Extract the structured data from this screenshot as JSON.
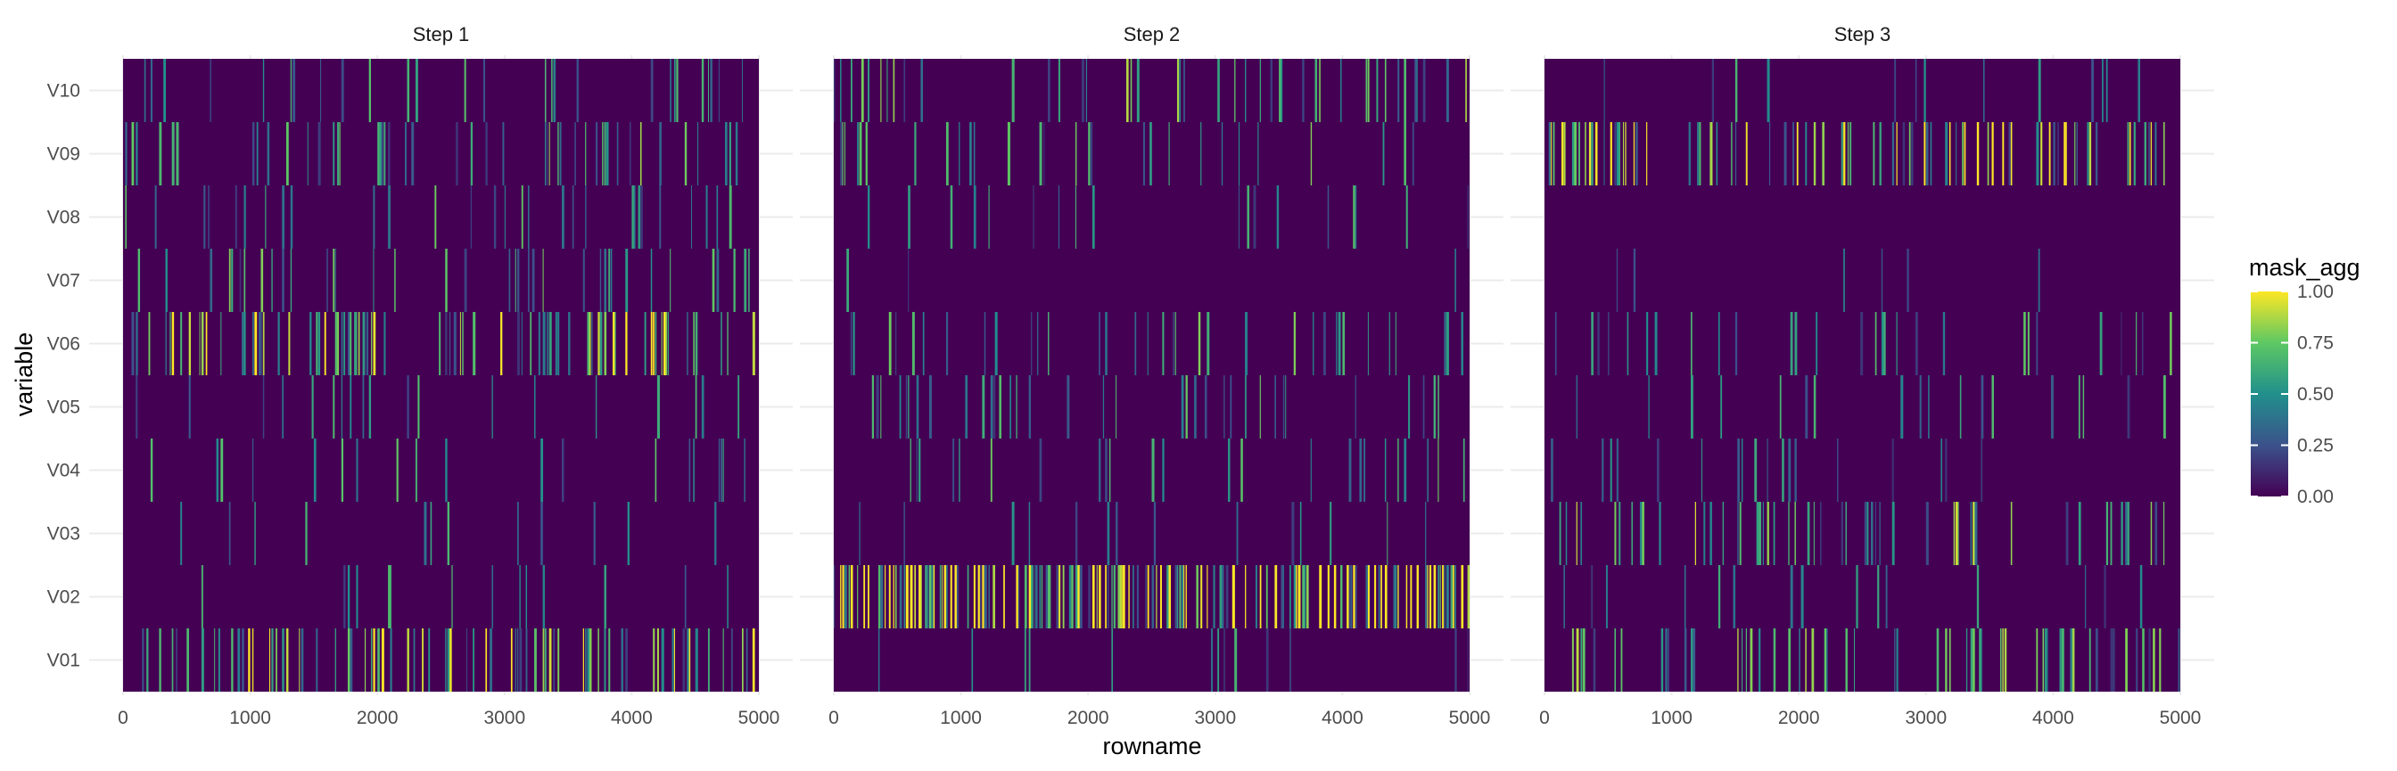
{
  "chart_data": {
    "type": "heatmap",
    "facet_titles": [
      "Step 1",
      "Step 2",
      "Step 3"
    ],
    "xlabel": "rowname",
    "ylabel": "variable",
    "xlim": [
      0,
      5000
    ],
    "x_ticks": [
      "0",
      "1000",
      "2000",
      "3000",
      "4000",
      "5000"
    ],
    "x_tick_values": [
      0,
      1000,
      2000,
      3000,
      4000,
      5000
    ],
    "variables": [
      "V01",
      "V02",
      "V03",
      "V04",
      "V05",
      "V06",
      "V07",
      "V08",
      "V09",
      "V10"
    ],
    "legend": {
      "title": "mask_agg",
      "placement": "right",
      "range": [
        0,
        1
      ],
      "ticks": [
        "0.00",
        "0.25",
        "0.50",
        "0.75",
        "1.00"
      ],
      "tick_values": [
        0,
        0.25,
        0.5,
        0.75,
        1.0
      ]
    },
    "palette": "viridis",
    "colors": [
      "#440154",
      "#3b528b",
      "#21908c",
      "#5dc863",
      "#fde725"
    ],
    "grid": true,
    "n_rows": 5000,
    "mean_mask_by_step_and_variable": {
      "Step 1": {
        "V01": 0.28,
        "V02": 0.06,
        "V03": 0.05,
        "V04": 0.1,
        "V05": 0.09,
        "V06": 0.32,
        "V07": 0.14,
        "V08": 0.11,
        "V09": 0.16,
        "V10": 0.1
      },
      "Step 2": {
        "V01": 0.04,
        "V02": 0.55,
        "V03": 0.08,
        "V04": 0.12,
        "V05": 0.13,
        "V06": 0.13,
        "V07": 0.02,
        "V08": 0.08,
        "V09": 0.14,
        "V10": 0.18
      },
      "Step 3": {
        "V01": 0.2,
        "V02": 0.06,
        "V03": 0.22,
        "V04": 0.05,
        "V05": 0.08,
        "V06": 0.12,
        "V07": 0.03,
        "V08": 0.0,
        "V09": 0.34,
        "V10": 0.06
      }
    }
  }
}
